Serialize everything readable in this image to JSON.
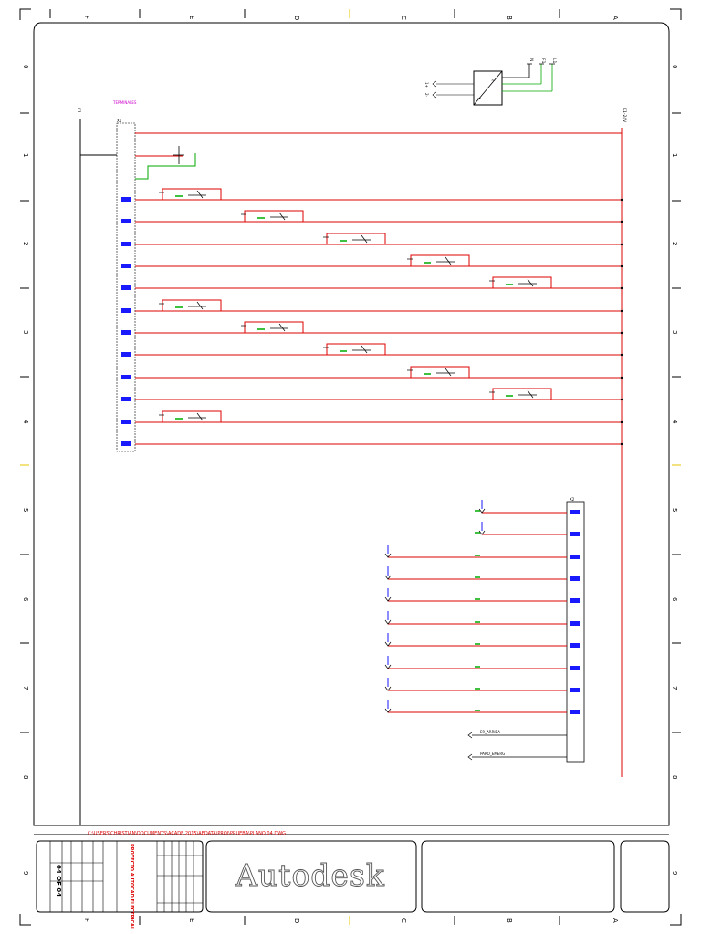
{
  "border": {
    "column_letters": [
      "F",
      "E",
      "D",
      "C",
      "B",
      "A"
    ],
    "row_numbers": [
      "0",
      "1",
      "2",
      "3",
      "4",
      "5",
      "6",
      "7",
      "8",
      "9"
    ]
  },
  "source_block": {
    "tags": [
      "1+",
      "2-"
    ],
    "signals": [
      "L1",
      "F1",
      "N"
    ]
  },
  "power_bus": {
    "left_label": "K1",
    "right_label": "K1-24V",
    "terminal_header": "TERMINALES",
    "block_label": "X1"
  },
  "io_block": {
    "label": "X2",
    "inputs": [
      "E9_ARRIBA",
      "PARO_EMERG"
    ]
  },
  "title_block": {
    "path": "C:\\USERS\\CHRISTIAN\\DOCUMENTS\\ACADE 2015\\AEDATA\\PROJ\\PRUEBA\\PLANO 04.DWG",
    "sheet": "04 OF 04",
    "project": "PROYECTO AUTOCAD ELECTRICAL",
    "logo": "Autodesk"
  },
  "colors": {
    "wire": "#dd0000",
    "wire_green": "#00aa00",
    "frame": "#000000",
    "terminal": "#1a1aff",
    "tag_magenta": "#cc00cc"
  }
}
